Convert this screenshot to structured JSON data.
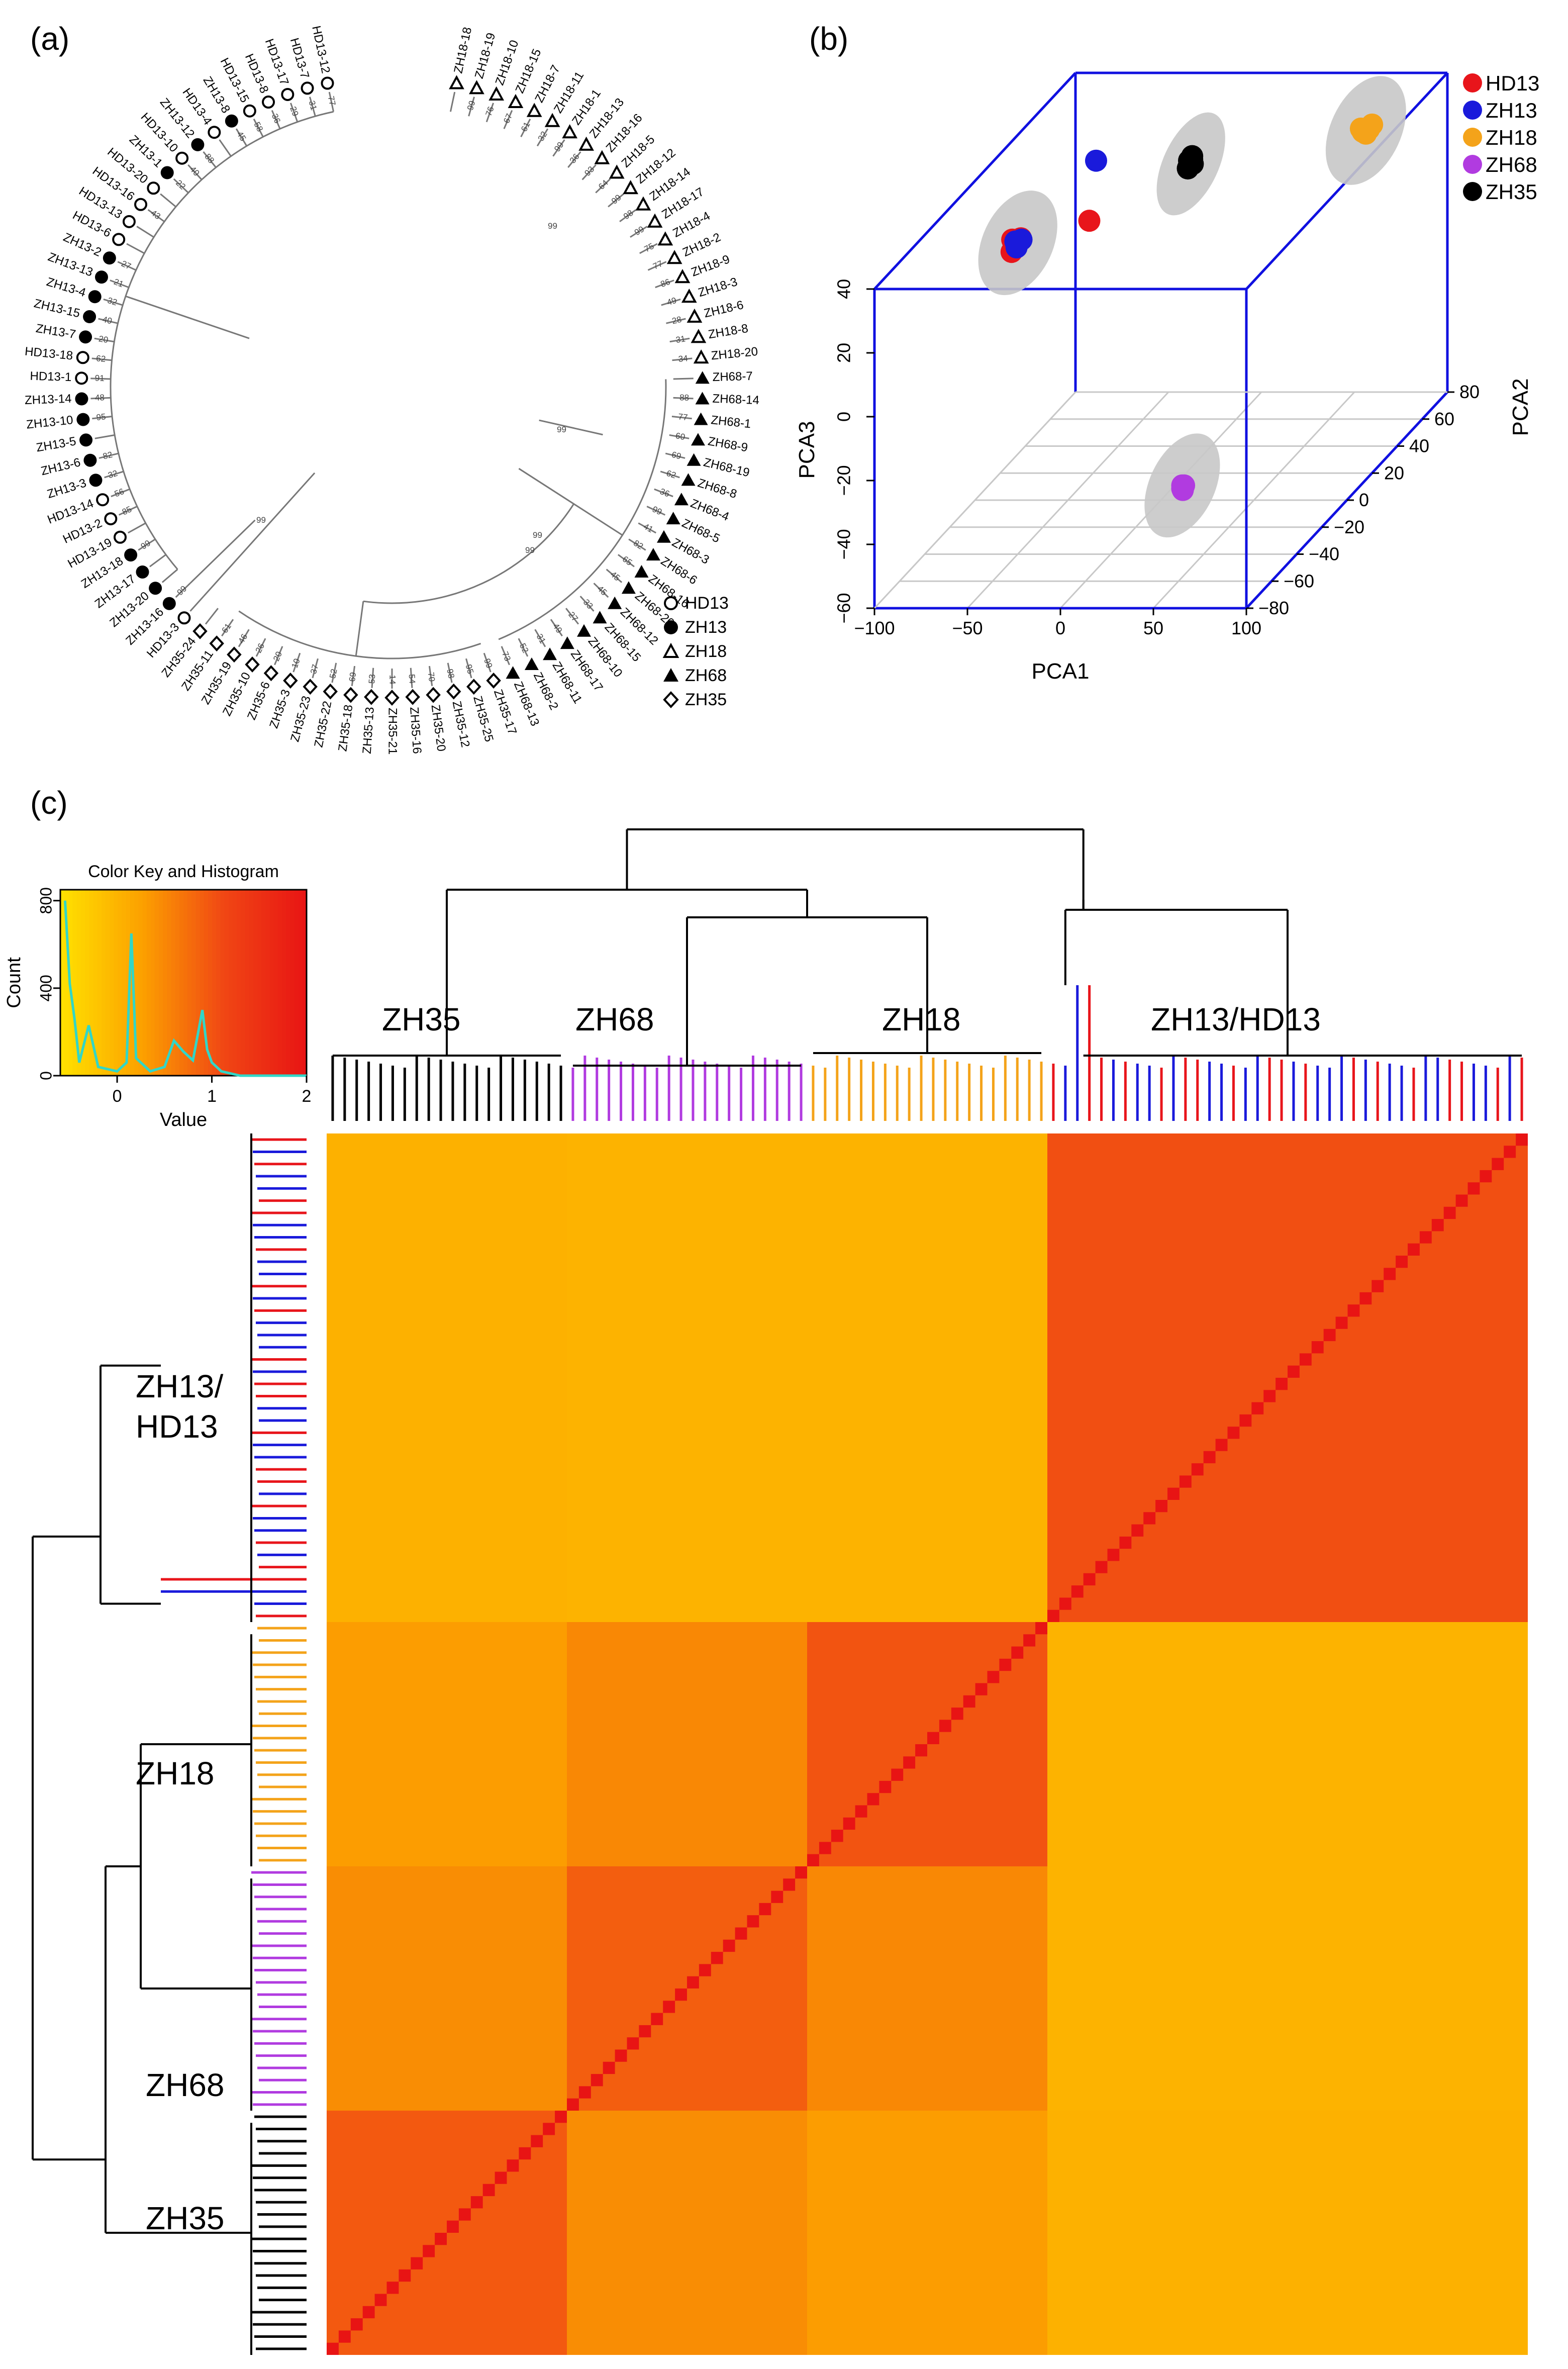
{
  "panels": {
    "a": "(a)",
    "b": "(b)",
    "c": "(c)"
  },
  "colors": {
    "HD13": "#e8151b",
    "ZH13": "#1a1adb",
    "ZH18": "#f4a31a",
    "ZH68": "#b13be0",
    "ZH35": "#000000",
    "box": "#1010e0",
    "ellipse": "#c8c8c8",
    "heat_low": "#ffe000",
    "heat_high": "#ee2a1a",
    "hist_line": "#31d6c7"
  },
  "chart_data": [
    {
      "id": "a",
      "type": "dendrogram",
      "title": "",
      "legend": [
        {
          "label": "HD13",
          "marker": "circle-open"
        },
        {
          "label": "ZH13",
          "marker": "circle-filled"
        },
        {
          "label": "ZH18",
          "marker": "triangle-open"
        },
        {
          "label": "ZH68",
          "marker": "triangle-filled"
        },
        {
          "label": "ZH35",
          "marker": "diamond-open"
        }
      ],
      "leaves": [
        {
          "label": "HD13-12",
          "group": "HD13",
          "support": "77"
        },
        {
          "label": "HD13-7",
          "group": "HD13",
          "support": "31"
        },
        {
          "label": "HD13-17",
          "group": "HD13",
          "support": "29"
        },
        {
          "label": "HD13-8",
          "group": "HD13",
          "support": "36"
        },
        {
          "label": "HD13-15",
          "group": "HD13",
          "support": "58"
        },
        {
          "label": "ZH13-8",
          "group": "ZH13",
          "support": "45"
        },
        {
          "label": "HD13-4",
          "group": "HD13",
          "support": ""
        },
        {
          "label": "ZH13-12",
          "group": "ZH13",
          "support": "88"
        },
        {
          "label": "HD13-10",
          "group": "HD13",
          "support": "40"
        },
        {
          "label": "ZH13-1",
          "group": "ZH13",
          "support": "22"
        },
        {
          "label": "HD13-20",
          "group": "HD13",
          "support": ""
        },
        {
          "label": "HD13-16",
          "group": "HD13",
          "support": "43"
        },
        {
          "label": "HD13-13",
          "group": "HD13",
          "support": ""
        },
        {
          "label": "HD13-6",
          "group": "HD13",
          "support": ""
        },
        {
          "label": "ZH13-2",
          "group": "ZH13",
          "support": "27"
        },
        {
          "label": "ZH13-13",
          "group": "ZH13",
          "support": "21"
        },
        {
          "label": "ZH13-4",
          "group": "ZH13",
          "support": "32"
        },
        {
          "label": "ZH13-15",
          "group": "ZH13",
          "support": "40"
        },
        {
          "label": "ZH13-7",
          "group": "ZH13",
          "support": "20"
        },
        {
          "label": "HD13-18",
          "group": "HD13",
          "support": "62"
        },
        {
          "label": "HD13-1",
          "group": "HD13",
          "support": "91"
        },
        {
          "label": "ZH13-14",
          "group": "ZH13",
          "support": "48"
        },
        {
          "label": "ZH13-10",
          "group": "ZH13",
          "support": "95"
        },
        {
          "label": "ZH13-5",
          "group": "ZH13",
          "support": ""
        },
        {
          "label": "ZH13-6",
          "group": "ZH13",
          "support": "82"
        },
        {
          "label": "ZH13-3",
          "group": "ZH13",
          "support": "32"
        },
        {
          "label": "HD13-14",
          "group": "HD13",
          "support": "56"
        },
        {
          "label": "HD13-2",
          "group": "HD13",
          "support": "85"
        },
        {
          "label": "HD13-19",
          "group": "HD13",
          "support": ""
        },
        {
          "label": "ZH13-18",
          "group": "ZH13",
          "support": "99"
        },
        {
          "label": "ZH13-17",
          "group": "ZH13",
          "support": ""
        },
        {
          "label": "ZH13-20",
          "group": "ZH13",
          "support": ""
        },
        {
          "label": "ZH13-16",
          "group": "ZH13",
          "support": "99"
        },
        {
          "label": "HD13-3",
          "group": "HD13",
          "support": ""
        },
        {
          "label": "ZH35-24",
          "group": "ZH35",
          "support": ""
        },
        {
          "label": "ZH35-11",
          "group": "ZH35",
          "support": "61"
        },
        {
          "label": "ZH35-19",
          "group": "ZH35",
          "support": "46"
        },
        {
          "label": "ZH35-10",
          "group": "ZH35",
          "support": "26"
        },
        {
          "label": "ZH35-6",
          "group": "ZH35",
          "support": "20"
        },
        {
          "label": "ZH35-3",
          "group": "ZH35",
          "support": "10"
        },
        {
          "label": "ZH35-23",
          "group": "ZH35",
          "support": "37"
        },
        {
          "label": "ZH35-22",
          "group": "ZH35",
          "support": "52"
        },
        {
          "label": "ZH35-18",
          "group": "ZH35",
          "support": "69"
        },
        {
          "label": "ZH35-13",
          "group": "ZH35",
          "support": "53"
        },
        {
          "label": "ZH35-21",
          "group": "ZH35",
          "support": "14"
        },
        {
          "label": "ZH35-16",
          "group": "ZH35",
          "support": "54"
        },
        {
          "label": "ZH35-20",
          "group": "ZH35",
          "support": "70"
        },
        {
          "label": "ZH35-12",
          "group": "ZH35",
          "support": "98"
        },
        {
          "label": "ZH35-25",
          "group": "ZH35",
          "support": "95"
        },
        {
          "label": "ZH35-17",
          "group": "ZH35",
          "support": "99"
        },
        {
          "label": "ZH68-13",
          "group": "ZH68",
          "support": "73"
        },
        {
          "label": "ZH68-2",
          "group": "ZH68",
          "support": "52"
        },
        {
          "label": "ZH68-11",
          "group": "ZH68",
          "support": "31"
        },
        {
          "label": "ZH68-17",
          "group": "ZH68",
          "support": "49"
        },
        {
          "label": "ZH68-10",
          "group": "ZH68",
          "support": "27"
        },
        {
          "label": "ZH68-15",
          "group": "ZH68",
          "support": "33"
        },
        {
          "label": "ZH68-12",
          "group": "ZH68",
          "support": "45"
        },
        {
          "label": "ZH68-20",
          "group": "ZH68",
          "support": "45"
        },
        {
          "label": "ZH68-16",
          "group": "ZH68",
          "support": "65"
        },
        {
          "label": "ZH68-6",
          "group": "ZH68",
          "support": "82"
        },
        {
          "label": "ZH68-3",
          "group": "ZH68",
          "support": "41"
        },
        {
          "label": "ZH68-5",
          "group": "ZH68",
          "support": "99"
        },
        {
          "label": "ZH68-4",
          "group": "ZH68",
          "support": "36"
        },
        {
          "label": "ZH68-8",
          "group": "ZH68",
          "support": "62"
        },
        {
          "label": "ZH68-19",
          "group": "ZH68",
          "support": "69"
        },
        {
          "label": "ZH68-9",
          "group": "ZH68",
          "support": "60"
        },
        {
          "label": "ZH68-1",
          "group": "ZH68",
          "support": "77"
        },
        {
          "label": "ZH68-14",
          "group": "ZH68",
          "support": "88"
        },
        {
          "label": "ZH68-7",
          "group": "ZH68",
          "support": ""
        },
        {
          "label": "ZH18-20",
          "group": "ZH18",
          "support": "34"
        },
        {
          "label": "ZH18-8",
          "group": "ZH18",
          "support": "31"
        },
        {
          "label": "ZH18-6",
          "group": "ZH18",
          "support": "28"
        },
        {
          "label": "ZH18-3",
          "group": "ZH18",
          "support": "49"
        },
        {
          "label": "ZH18-9",
          "group": "ZH18",
          "support": "86"
        },
        {
          "label": "ZH18-2",
          "group": "ZH18",
          "support": "77"
        },
        {
          "label": "ZH18-4",
          "group": "ZH18",
          "support": "75"
        },
        {
          "label": "ZH18-17",
          "group": "ZH18",
          "support": "99"
        },
        {
          "label": "ZH18-14",
          "group": "ZH18",
          "support": "98"
        },
        {
          "label": "ZH18-12",
          "group": "ZH18",
          "support": "99"
        },
        {
          "label": "ZH18-5",
          "group": "ZH18",
          "support": "64"
        },
        {
          "label": "ZH18-16",
          "group": "ZH18",
          "support": "93"
        },
        {
          "label": "ZH18-13",
          "group": "ZH18",
          "support": "36"
        },
        {
          "label": "ZH18-1",
          "group": "ZH18",
          "support": "99"
        },
        {
          "label": "ZH18-11",
          "group": "ZH18",
          "support": "32"
        },
        {
          "label": "ZH18-7",
          "group": "ZH18",
          "support": "61"
        },
        {
          "label": "ZH18-15",
          "group": "ZH18",
          "support": "67"
        },
        {
          "label": "ZH18-10",
          "group": "ZH18",
          "support": "76"
        },
        {
          "label": "ZH18-19",
          "group": "ZH18",
          "support": "99"
        },
        {
          "label": "ZH18-18",
          "group": "ZH18",
          "support": ""
        }
      ],
      "internal_support": [
        "99",
        "99",
        "99",
        "99",
        "99"
      ]
    },
    {
      "id": "b",
      "type": "scatter3d",
      "xlabel": "PCA1",
      "ylabel": "PCA2",
      "zlabel": "PCA3",
      "xlim": [
        -100,
        100
      ],
      "ylim": [
        -80,
        80
      ],
      "zlim": [
        -60,
        40
      ],
      "xticks": [
        "−100",
        "−50",
        "0",
        "50",
        "100"
      ],
      "yticks": [
        "−80",
        "−60",
        "−40",
        "−20",
        "0",
        "20",
        "40",
        "60",
        "80"
      ],
      "zticks": [
        "−60",
        "−40",
        "−20",
        "0",
        "20",
        "40"
      ],
      "series": [
        {
          "name": "HD13",
          "points": [
            [
              -55,
              -35,
              35
            ],
            [
              -53,
              -33,
              36
            ],
            [
              -56,
              -36,
              33
            ],
            [
              -25,
              -20,
              36
            ],
            [
              -57,
              -34,
              36
            ]
          ]
        },
        {
          "name": "ZH13",
          "points": [
            [
              -55,
              -33,
              35
            ],
            [
              -54,
              -35,
              34
            ],
            [
              -52,
              -34,
              36
            ],
            [
              -45,
              15,
              40
            ],
            [
              -56,
              -33,
              35
            ]
          ]
        },
        {
          "name": "ZH18",
          "points": [
            [
              68,
              60,
              30
            ],
            [
              70,
              62,
              30
            ],
            [
              69,
              61,
              29
            ],
            [
              71,
              63,
              31
            ],
            [
              67,
              60,
              31
            ]
          ]
        },
        {
          "name": "ZH68",
          "points": [
            [
              52,
              -60,
              -30
            ],
            [
              53,
              -61,
              -31
            ],
            [
              52,
              -60,
              -31
            ],
            [
              53,
              -60,
              -30
            ]
          ]
        },
        {
          "name": "ZH35",
          "points": [
            [
              5,
              15,
              40
            ],
            [
              6,
              16,
              40
            ],
            [
              5,
              14,
              38
            ],
            [
              7,
              15,
              39
            ],
            [
              6,
              16,
              41
            ]
          ]
        }
      ]
    },
    {
      "id": "c",
      "type": "heatmap",
      "color_key_title": "Color Key and Histogram",
      "color_key_xlabel": "Value",
      "color_key_ylabel": "Count",
      "color_key_xticks": [
        "0",
        "1",
        "2"
      ],
      "color_key_yticks": [
        "0",
        "400",
        "800"
      ],
      "color_key_range": [
        -0.6,
        2
      ],
      "histogram": [
        [
          -0.55,
          800
        ],
        [
          -0.5,
          420
        ],
        [
          -0.45,
          260
        ],
        [
          -0.4,
          60
        ],
        [
          -0.3,
          230
        ],
        [
          -0.2,
          40
        ],
        [
          -0.1,
          30
        ],
        [
          0.0,
          20
        ],
        [
          0.1,
          60
        ],
        [
          0.15,
          650
        ],
        [
          0.2,
          80
        ],
        [
          0.35,
          20
        ],
        [
          0.5,
          40
        ],
        [
          0.6,
          160
        ],
        [
          0.7,
          110
        ],
        [
          0.8,
          70
        ],
        [
          0.9,
          300
        ],
        [
          0.95,
          120
        ],
        [
          1.0,
          60
        ],
        [
          1.1,
          20
        ],
        [
          1.3,
          0
        ],
        [
          2.0,
          0
        ]
      ],
      "cluster_labels_top": [
        "ZH35",
        "ZH68",
        "ZH18",
        "ZH13/HD13"
      ],
      "cluster_labels_left": [
        "ZH13/",
        "HD13",
        "ZH18",
        "ZH68",
        "ZH35"
      ],
      "column_order_groups": [
        {
          "group": "ZH35",
          "count": 20
        },
        {
          "group": "ZH68",
          "count": 20
        },
        {
          "group": "ZH18",
          "count": 20
        },
        {
          "group": "ZH13/HD13",
          "count": 40,
          "colors": [
            "HD13",
            "ZH13",
            "ZH13",
            "HD13",
            "HD13",
            "ZH13",
            "HD13",
            "ZH13",
            "ZH13",
            "HD13",
            "ZH13",
            "HD13",
            "HD13",
            "ZH13",
            "ZH13",
            "HD13",
            "ZH13",
            "ZH13",
            "HD13",
            "HD13",
            "ZH13",
            "HD13",
            "ZH13",
            "ZH13",
            "ZH13",
            "HD13",
            "ZH13",
            "HD13",
            "ZH13",
            "ZH13",
            "HD13",
            "ZH13",
            "ZH13",
            "HD13",
            "HD13",
            "ZH13",
            "ZH13",
            "HD13",
            "ZH13",
            "HD13"
          ]
        }
      ],
      "block_values": {
        "ZH35-ZH35": 0.95,
        "ZH68-ZH68": 0.9,
        "ZH18-ZH18": 1.0,
        "ZH13/HD13-ZH13/HD13": 1.05,
        "ZH35-ZH68": 0.45,
        "ZH35-ZH18": 0.3,
        "ZH68-ZH18": 0.5,
        "ZH35-ZH13/HD13": 0.05,
        "ZH68-ZH13/HD13": 0.02,
        "ZH18-ZH13/HD13": 0.02,
        "diagonal": 2.0
      }
    }
  ]
}
